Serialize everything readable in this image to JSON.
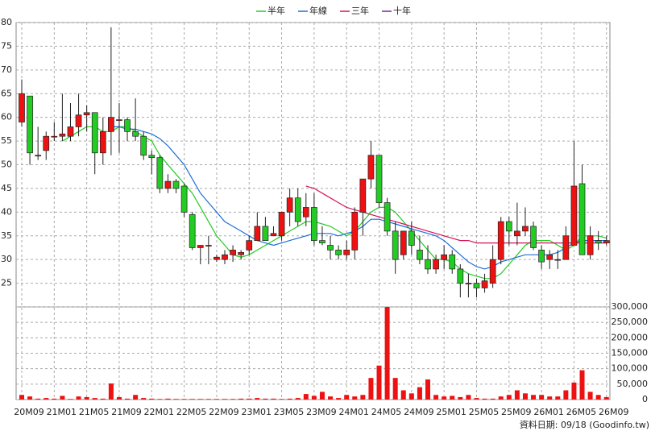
{
  "chart_data": {
    "type": "candlestick",
    "categories": [
      "20M09",
      null,
      null,
      null,
      "21M01",
      null,
      null,
      null,
      "21M05",
      null,
      null,
      null,
      "21M09",
      null,
      null,
      null,
      "22M01",
      null,
      null,
      null,
      "22M05",
      null,
      null,
      null,
      "22M09",
      null,
      null,
      null,
      "23M01",
      null,
      null,
      null,
      "23M05",
      null,
      null,
      null,
      "23M09",
      null,
      null,
      null,
      "24M01",
      null,
      null,
      null,
      "24M05",
      null,
      null,
      null,
      "24M09",
      null,
      null,
      null,
      "25M01",
      null,
      null,
      null,
      "25M05",
      null,
      null,
      null,
      "25M09",
      null,
      null,
      null,
      "26M01",
      null,
      null,
      null,
      "26M05",
      null,
      null,
      null,
      "26M09"
    ],
    "open": [
      59,
      64.5,
      52,
      53,
      56,
      56,
      56,
      58,
      60.5,
      61,
      52.5,
      57,
      59.5,
      59.5,
      57,
      56,
      52,
      51.5,
      45,
      46.5,
      45.5,
      39.5,
      32.5,
      33,
      30,
      30,
      31,
      31,
      32,
      34,
      37,
      35,
      35,
      40,
      43,
      39,
      41,
      34,
      33,
      32,
      31,
      32,
      40,
      47,
      52,
      42,
      36,
      31,
      36,
      32,
      30,
      28,
      30,
      31,
      28,
      25,
      25,
      24,
      25,
      30,
      38,
      35,
      36,
      37,
      32,
      30,
      30,
      30,
      33,
      46,
      31,
      34,
      33.5
    ],
    "high": [
      68,
      64.5,
      58,
      57,
      59,
      65,
      63,
      65,
      62.5,
      61,
      60,
      79,
      63,
      60,
      64,
      57,
      53,
      52,
      48,
      47,
      46,
      40,
      33,
      35,
      31,
      32,
      33,
      32,
      35,
      40,
      39,
      37,
      40,
      45,
      45,
      44,
      44,
      37,
      35,
      33,
      34,
      41,
      47,
      55,
      52,
      43,
      38,
      36,
      38,
      35,
      33,
      31,
      33,
      32,
      29,
      27,
      26,
      27,
      33,
      39,
      39,
      42,
      41,
      38,
      33,
      32,
      32,
      37,
      55,
      50,
      37,
      36,
      35
    ],
    "low": [
      58,
      50,
      51,
      51,
      55,
      55,
      55,
      56,
      57,
      48,
      50,
      52,
      52.5,
      55,
      55,
      51,
      48,
      44,
      44,
      44,
      39,
      32,
      29,
      29,
      29.5,
      29,
      29.5,
      30,
      31,
      34,
      34,
      35,
      34,
      37,
      37,
      37,
      33,
      33,
      30,
      30,
      30,
      30,
      35,
      45,
      41,
      35,
      27,
      30,
      31,
      29,
      27,
      27,
      28,
      27,
      22,
      22,
      22,
      23,
      24,
      29,
      33,
      33,
      35,
      32,
      28,
      28,
      28,
      30,
      33,
      31,
      30,
      32,
      33
    ],
    "close": [
      65,
      52.5,
      52,
      56,
      56,
      56.5,
      58,
      60.5,
      61,
      52.5,
      57,
      60,
      59.5,
      57,
      56,
      52,
      51.5,
      45,
      46.5,
      45,
      40,
      32.5,
      33,
      33,
      30.5,
      31,
      32,
      31.5,
      34,
      37,
      34,
      35.5,
      40,
      43,
      38,
      41,
      34,
      33.5,
      32,
      31,
      32,
      40,
      47,
      52,
      42,
      36,
      30,
      36,
      33,
      30,
      28,
      30,
      31,
      28,
      25,
      25,
      24,
      25.5,
      30,
      38,
      36,
      36,
      37,
      32.5,
      29.5,
      31,
      30,
      35,
      45.5,
      31,
      35,
      33.5,
      34
    ],
    "ylim": [
      20,
      80
    ],
    "yticks": [
      25,
      30,
      35,
      40,
      45,
      50,
      55,
      60,
      65,
      70,
      75,
      80
    ],
    "series": [
      {
        "name": "半年",
        "color": "#22cc22",
        "values": [
          null,
          null,
          null,
          null,
          null,
          55,
          56,
          57,
          58,
          58,
          57,
          57,
          58,
          58,
          57,
          56,
          55,
          52,
          50,
          48,
          46,
          44,
          41,
          38,
          35,
          33,
          31,
          30.5,
          31,
          32,
          33,
          34,
          35,
          36,
          37,
          38,
          38,
          37.5,
          37,
          36,
          35,
          36,
          38,
          40,
          41,
          41,
          40,
          38,
          36,
          34,
          32,
          30,
          30,
          29.5,
          28,
          27,
          26.5,
          26,
          26,
          27,
          29,
          31,
          33,
          34,
          34,
          34,
          33,
          32,
          33,
          35,
          35,
          35,
          34.5
        ]
      },
      {
        "name": "年線",
        "color": "#1e6fd9",
        "values": [
          null,
          null,
          null,
          null,
          null,
          null,
          null,
          null,
          null,
          null,
          null,
          58,
          58,
          57.5,
          57.5,
          57,
          56.5,
          55.5,
          54,
          52,
          50,
          47,
          44,
          42,
          40,
          38,
          37,
          36,
          35,
          34,
          33.5,
          33,
          33.5,
          34,
          34.5,
          35,
          35.5,
          35.5,
          35.5,
          35,
          35.5,
          36,
          37,
          38.5,
          38.5,
          38,
          37.5,
          37,
          36.5,
          36,
          35.5,
          35,
          34,
          32.5,
          31,
          29.5,
          28.5,
          28,
          28.5,
          29.5,
          30,
          30.5,
          31,
          31,
          31,
          31,
          31.5,
          32.5,
          33.5,
          34,
          34,
          34,
          34
        ]
      },
      {
        "name": "三年",
        "color": "#d4145a",
        "values": [
          null,
          null,
          null,
          null,
          null,
          null,
          null,
          null,
          null,
          null,
          null,
          null,
          null,
          null,
          null,
          null,
          null,
          null,
          null,
          null,
          null,
          null,
          null,
          null,
          null,
          null,
          null,
          null,
          null,
          null,
          null,
          null,
          null,
          null,
          null,
          45.5,
          45,
          44,
          43,
          42,
          41,
          40.5,
          40,
          39.5,
          39,
          38.5,
          38,
          37.5,
          37,
          36.5,
          36,
          35.5,
          35,
          34.5,
          34,
          34,
          33.5,
          33.5,
          33.5,
          33.5,
          33.5,
          33.5,
          33.5,
          33.5,
          33.5,
          33.5,
          33.5,
          33.5,
          33.5,
          33.5,
          33.5,
          33.5,
          33.5
        ]
      },
      {
        "name": "十年",
        "color": "#7a1fa2",
        "values": [
          null,
          null,
          null,
          null,
          null,
          null,
          null,
          null,
          null,
          null,
          null,
          null,
          null,
          null,
          null,
          null,
          null,
          null,
          null,
          null,
          null,
          null,
          null,
          null,
          null,
          null,
          null,
          null,
          null,
          null,
          null,
          null,
          null,
          null,
          null,
          null,
          null,
          null,
          null,
          null,
          null,
          null,
          null,
          null,
          null,
          null,
          null,
          null,
          null,
          null,
          null,
          null,
          null,
          null,
          null,
          null,
          null,
          null,
          null,
          null,
          null,
          null,
          null,
          null,
          null,
          null,
          null,
          null,
          null,
          null,
          null,
          null,
          null
        ]
      }
    ],
    "up_color": "#ee1111",
    "down_color": "#22cc22",
    "grid": true,
    "volume": {
      "type": "bar",
      "color": "#ee1111",
      "values": [
        15000,
        10000,
        3000,
        5000,
        3000,
        12000,
        2000,
        10000,
        8000,
        5000,
        3000,
        52000,
        8000,
        3000,
        15000,
        5000,
        3000,
        2000,
        3000,
        2000,
        2000,
        2000,
        2000,
        2000,
        2000,
        2000,
        2000,
        3000,
        3000,
        5000,
        3000,
        3000,
        2000,
        3000,
        5000,
        18000,
        12000,
        25000,
        10000,
        5000,
        15000,
        10000,
        15000,
        70000,
        110000,
        300000,
        70000,
        30000,
        20000,
        40000,
        65000,
        15000,
        10000,
        12000,
        8000,
        15000,
        5000,
        3000,
        3000,
        10000,
        15000,
        30000,
        20000,
        15000,
        15000,
        10000,
        10000,
        30000,
        55000,
        95000,
        25000,
        15000,
        8000
      ],
      "ylim": [
        0,
        300000
      ],
      "yticks": [
        0,
        {
          "value": 50000,
          "label": "50,000"
        },
        {
          "value": 100000,
          "label": "100,000"
        },
        {
          "value": 150000,
          "label": "150,000"
        },
        {
          "value": 200000,
          "label": "200,000"
        },
        {
          "value": 250000,
          "label": "250,000"
        },
        {
          "value": 300000,
          "label": "300,000"
        }
      ]
    },
    "footnote": "資料日期: 09/18 (Goodinfo.tw)"
  }
}
